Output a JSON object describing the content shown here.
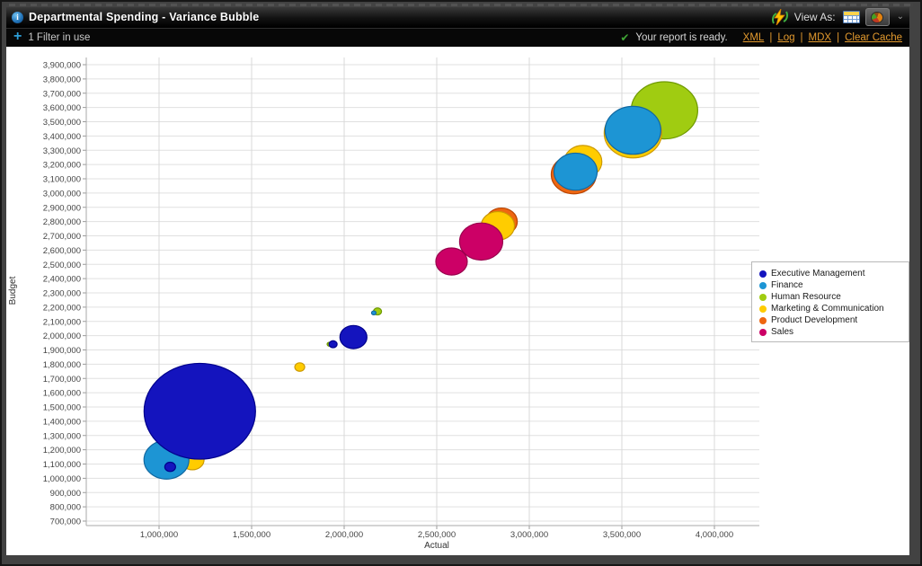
{
  "title_bar": {
    "title": "Departmental Spending - Variance Bubble",
    "view_as_label": "View As:",
    "info_icon_glyph": "i",
    "chevron_glyph": "⌄"
  },
  "status_bar": {
    "plus_glyph": "+",
    "filter_text": "1 Filter in use",
    "check_glyph": "✔",
    "ready_text": "Your report is ready.",
    "links": [
      "XML",
      "Log",
      "MDX",
      "Clear Cache"
    ],
    "link_separator": "|",
    "link_color": "#e39a2e"
  },
  "chart_data": {
    "type": "scatter",
    "subtype": "bubble",
    "xlabel": "Actual",
    "ylabel": "Budget",
    "x_axis": {
      "min": 1000000,
      "max": 4000000,
      "tick_step": 500000
    },
    "y_axis": {
      "min": 700000,
      "max": 3900000,
      "tick_step": 100000
    },
    "grid": true,
    "legend_position": "right-middle",
    "legend": [
      {
        "label": "Executive Management",
        "color": "#1414be"
      },
      {
        "label": "Finance",
        "color": "#1d95d4"
      },
      {
        "label": "Human Resource",
        "color": "#a0cc11"
      },
      {
        "label": "Marketing & Communication",
        "color": "#ffcc00"
      },
      {
        "label": "Product Development",
        "color": "#ee6611"
      },
      {
        "label": "Sales",
        "color": "#cc0066"
      }
    ],
    "series": [
      {
        "name": "Product Development",
        "color": "#ee6611",
        "border": "#bb4400",
        "points": [
          {
            "x": 2850000,
            "y": 2800000,
            "r": 17.5
          },
          {
            "x": 3240000,
            "y": 3130000,
            "r": 25
          }
        ]
      },
      {
        "name": "Human Resource",
        "color": "#a0cc11",
        "border": "#6e9900",
        "points": [
          {
            "x": 1920000,
            "y": 1940000,
            "r": 2.5
          },
          {
            "x": 2180000,
            "y": 2170000,
            "r": 4.5
          },
          {
            "x": 3730000,
            "y": 3580000,
            "r": 37
          }
        ]
      },
      {
        "name": "Marketing & Communication",
        "color": "#ffcc00",
        "border": "#cc9900",
        "points": [
          {
            "x": 1180000,
            "y": 1130000,
            "r": 13
          },
          {
            "x": 1760000,
            "y": 1780000,
            "r": 5.5
          },
          {
            "x": 2830000,
            "y": 2770000,
            "r": 18.5
          },
          {
            "x": 3290000,
            "y": 3220000,
            "r": 21
          },
          {
            "x": 3560000,
            "y": 3420000,
            "r": 32
          }
        ]
      },
      {
        "name": "Sales",
        "color": "#cc0066",
        "border": "#99004d",
        "points": [
          {
            "x": 2580000,
            "y": 2520000,
            "r": 17.5
          },
          {
            "x": 2740000,
            "y": 2660000,
            "r": 24
          }
        ]
      },
      {
        "name": "Finance",
        "color": "#1d95d4",
        "border": "#1268a0",
        "points": [
          {
            "x": 1040000,
            "y": 1130000,
            "r": 25
          },
          {
            "x": 2160000,
            "y": 2160000,
            "r": 2.5
          },
          {
            "x": 3250000,
            "y": 3150000,
            "r": 24
          },
          {
            "x": 3560000,
            "y": 3440000,
            "r": 31
          }
        ]
      },
      {
        "name": "Executive Management",
        "color": "#1414be",
        "border": "#00008b",
        "points": [
          {
            "x": 1060000,
            "y": 1080000,
            "r": 6
          },
          {
            "x": 1220000,
            "y": 1470000,
            "r": 62
          },
          {
            "x": 1940000,
            "y": 1940000,
            "r": 4.5
          },
          {
            "x": 2050000,
            "y": 1990000,
            "r": 15
          }
        ]
      }
    ]
  }
}
